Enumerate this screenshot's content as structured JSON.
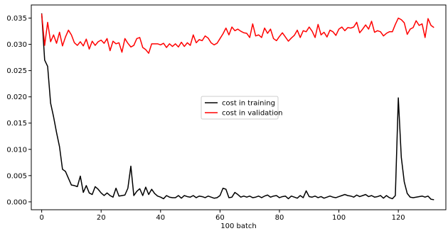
{
  "chart_data": {
    "type": "line",
    "title": "",
    "xlabel": "100 batch",
    "ylabel": "",
    "xlim": [
      -3.5,
      136
    ],
    "ylim": [
      -0.0015,
      0.0375
    ],
    "xticks": [
      0,
      20,
      40,
      60,
      80,
      100,
      120
    ],
    "xtick_labels": [
      "0",
      "20",
      "40",
      "60",
      "80",
      "100",
      "120"
    ],
    "yticks": [
      0.0,
      0.005,
      0.01,
      0.015,
      0.02,
      0.025,
      0.03,
      0.035
    ],
    "ytick_labels": [
      "0.000",
      "0.005",
      "0.010",
      "0.015",
      "0.020",
      "0.025",
      "0.030",
      "0.035"
    ],
    "grid": false,
    "legend": {
      "position": "center-right"
    },
    "series": [
      {
        "name": "cost in training",
        "color": "#000000",
        "x": [
          0,
          1,
          2,
          3,
          4,
          5,
          6,
          7,
          8,
          9,
          10,
          11,
          12,
          13,
          14,
          15,
          16,
          17,
          18,
          19,
          20,
          21,
          22,
          23,
          24,
          25,
          26,
          27,
          28,
          29,
          30,
          31,
          32,
          33,
          34,
          35,
          36,
          37,
          38,
          39,
          40,
          41,
          42,
          43,
          44,
          45,
          46,
          47,
          48,
          49,
          50,
          51,
          52,
          53,
          54,
          55,
          56,
          57,
          58,
          59,
          60,
          61,
          62,
          63,
          64,
          65,
          66,
          67,
          68,
          69,
          70,
          71,
          72,
          73,
          74,
          75,
          76,
          77,
          78,
          79,
          80,
          81,
          82,
          83,
          84,
          85,
          86,
          87,
          88,
          89,
          90,
          91,
          92,
          93,
          94,
          95,
          96,
          97,
          98,
          99,
          100,
          101,
          102,
          103,
          104,
          105,
          106,
          107,
          108,
          109,
          110,
          111,
          112,
          113,
          114,
          115,
          116,
          117,
          118,
          119,
          120,
          121,
          122,
          123,
          124,
          125,
          126,
          127,
          128,
          129,
          130,
          131,
          132
        ],
        "y": [
          0.0359,
          0.027,
          0.0258,
          0.0188,
          0.0162,
          0.0132,
          0.0105,
          0.0062,
          0.0058,
          0.0045,
          0.0032,
          0.0031,
          0.0029,
          0.0049,
          0.0018,
          0.0031,
          0.0017,
          0.0014,
          0.0029,
          0.0024,
          0.0017,
          0.0012,
          0.0017,
          0.0012,
          0.0009,
          0.0026,
          0.0011,
          0.0012,
          0.0013,
          0.0026,
          0.0068,
          0.0012,
          0.002,
          0.0025,
          0.0012,
          0.0028,
          0.0014,
          0.0024,
          0.0016,
          0.0011,
          0.0009,
          0.0006,
          0.0012,
          0.0009,
          0.0008,
          0.0008,
          0.0012,
          0.0007,
          0.0012,
          0.001,
          0.0009,
          0.0012,
          0.0008,
          0.0011,
          0.001,
          0.0008,
          0.0011,
          0.0009,
          0.0007,
          0.0008,
          0.0012,
          0.0026,
          0.0024,
          0.0008,
          0.0009,
          0.0018,
          0.0014,
          0.0009,
          0.0011,
          0.0009,
          0.0011,
          0.0008,
          0.0009,
          0.0011,
          0.0008,
          0.0011,
          0.0013,
          0.0009,
          0.0011,
          0.0012,
          0.0008,
          0.001,
          0.0011,
          0.0006,
          0.0011,
          0.0009,
          0.0007,
          0.0012,
          0.0008,
          0.0021,
          0.001,
          0.0009,
          0.0011,
          0.0008,
          0.001,
          0.0007,
          0.0009,
          0.0011,
          0.0009,
          0.0008,
          0.001,
          0.0012,
          0.0014,
          0.0012,
          0.0011,
          0.0009,
          0.0013,
          0.001,
          0.0012,
          0.0014,
          0.001,
          0.0012,
          0.0009,
          0.001,
          0.0012,
          0.0007,
          0.0012,
          0.0008,
          0.0006,
          0.0012,
          0.0198,
          0.0085,
          0.0038,
          0.0016,
          0.0009,
          0.0008,
          0.0009,
          0.001,
          0.0011,
          0.0009,
          0.0011,
          0.0005,
          0.0004
        ]
      },
      {
        "name": "cost in validation",
        "color": "#ff0000",
        "x": [
          0,
          1,
          2,
          3,
          4,
          5,
          6,
          7,
          8,
          9,
          10,
          11,
          12,
          13,
          14,
          15,
          16,
          17,
          18,
          19,
          20,
          21,
          22,
          23,
          24,
          25,
          26,
          27,
          28,
          29,
          30,
          31,
          32,
          33,
          34,
          35,
          36,
          37,
          38,
          39,
          40,
          41,
          42,
          43,
          44,
          45,
          46,
          47,
          48,
          49,
          50,
          51,
          52,
          53,
          54,
          55,
          56,
          57,
          58,
          59,
          60,
          61,
          62,
          63,
          64,
          65,
          66,
          67,
          68,
          69,
          70,
          71,
          72,
          73,
          74,
          75,
          76,
          77,
          78,
          79,
          80,
          81,
          82,
          83,
          84,
          85,
          86,
          87,
          88,
          89,
          90,
          91,
          92,
          93,
          94,
          95,
          96,
          97,
          98,
          99,
          100,
          101,
          102,
          103,
          104,
          105,
          106,
          107,
          108,
          109,
          110,
          111,
          112,
          113,
          114,
          115,
          116,
          117,
          118,
          119,
          120,
          121,
          122,
          123,
          124,
          125,
          126,
          127,
          128,
          129,
          130,
          131,
          132
        ],
        "y": [
          0.0358,
          0.0298,
          0.0342,
          0.0305,
          0.0318,
          0.0302,
          0.0323,
          0.0297,
          0.0314,
          0.0327,
          0.0318,
          0.0303,
          0.0298,
          0.0305,
          0.0297,
          0.031,
          0.0291,
          0.0306,
          0.0298,
          0.0305,
          0.0308,
          0.0302,
          0.0311,
          0.0288,
          0.0306,
          0.0301,
          0.0303,
          0.0285,
          0.0311,
          0.0302,
          0.0295,
          0.0298,
          0.0311,
          0.0313,
          0.0294,
          0.029,
          0.0283,
          0.0301,
          0.0301,
          0.0301,
          0.0299,
          0.0302,
          0.0294,
          0.0301,
          0.0296,
          0.0301,
          0.0295,
          0.0304,
          0.0296,
          0.0303,
          0.0298,
          0.0318,
          0.0303,
          0.0309,
          0.0307,
          0.0316,
          0.0312,
          0.0303,
          0.0299,
          0.0302,
          0.0311,
          0.032,
          0.0331,
          0.0318,
          0.0333,
          0.0326,
          0.0329,
          0.0325,
          0.0322,
          0.0321,
          0.0313,
          0.0339,
          0.0316,
          0.0318,
          0.0313,
          0.0331,
          0.0321,
          0.0329,
          0.0311,
          0.0307,
          0.0315,
          0.0322,
          0.0314,
          0.0306,
          0.0312,
          0.0317,
          0.0327,
          0.0313,
          0.0326,
          0.0324,
          0.0333,
          0.0325,
          0.0313,
          0.0338,
          0.0318,
          0.0323,
          0.0314,
          0.0327,
          0.0324,
          0.0317,
          0.0329,
          0.0333,
          0.0326,
          0.0332,
          0.0331,
          0.0333,
          0.0342,
          0.0322,
          0.0329,
          0.0337,
          0.0329,
          0.0344,
          0.0323,
          0.0326,
          0.0324,
          0.0316,
          0.0321,
          0.0324,
          0.0324,
          0.0338,
          0.035,
          0.0347,
          0.0341,
          0.0319,
          0.0329,
          0.0332,
          0.0345,
          0.0336,
          0.0339,
          0.0313,
          0.0349,
          0.0336,
          0.0332
        ]
      }
    ]
  }
}
